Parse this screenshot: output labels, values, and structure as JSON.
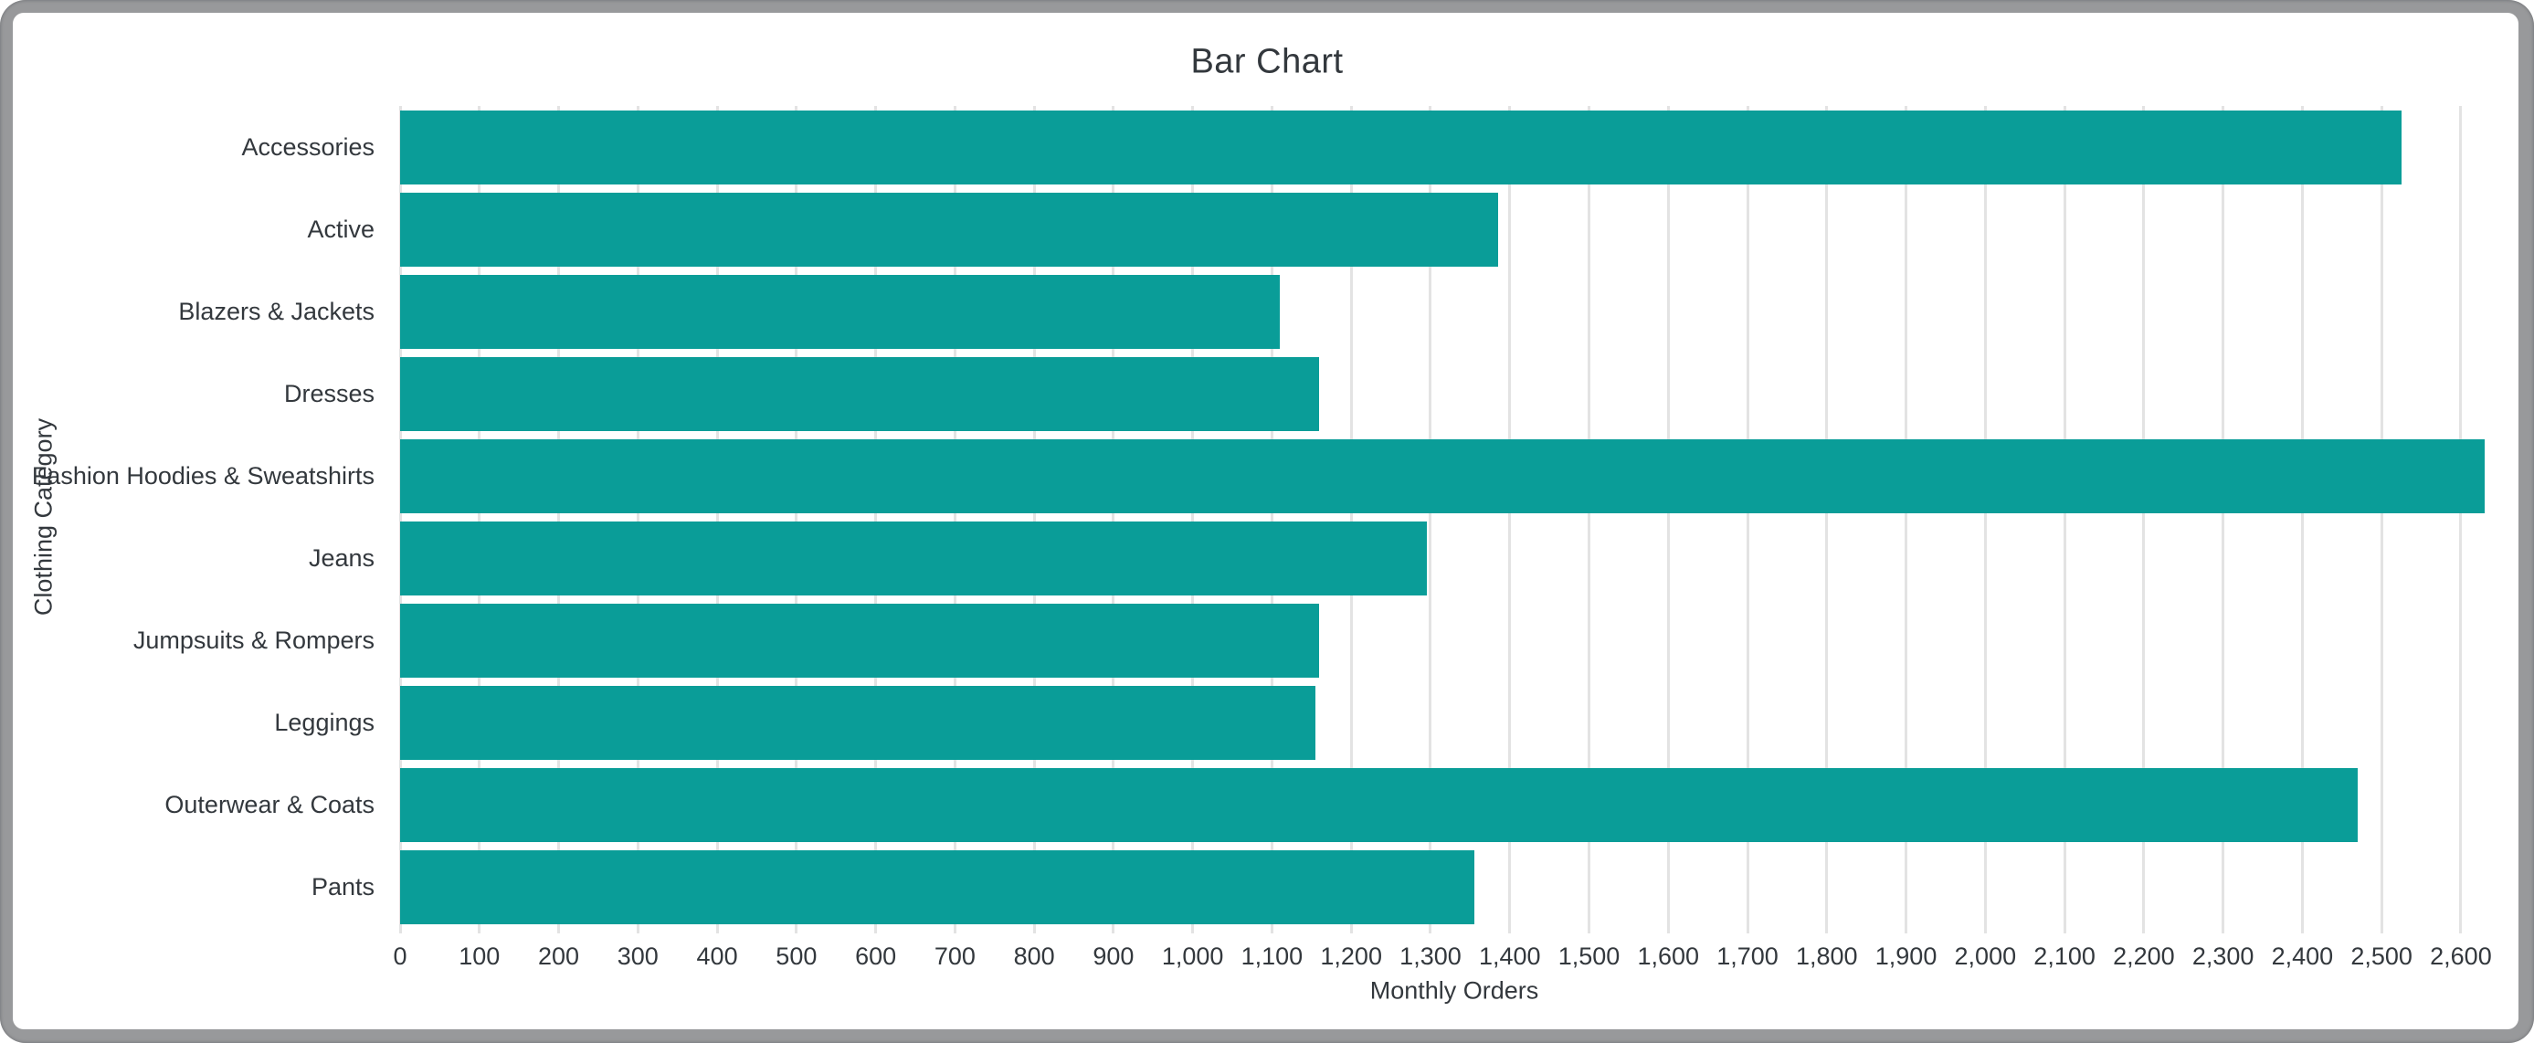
{
  "chart_data": {
    "type": "bar",
    "orientation": "horizontal",
    "title": "Bar Chart",
    "xlabel": "Monthly Orders",
    "ylabel": "Clothing Category",
    "categories": [
      "Accessories",
      "Active",
      "Blazers & Jackets",
      "Dresses",
      "Fashion Hoodies & Sweatshirts",
      "Jeans",
      "Jumpsuits & Rompers",
      "Leggings",
      "Outerwear & Coats",
      "Pants"
    ],
    "values": [
      2525,
      1385,
      1110,
      1160,
      2630,
      1295,
      1160,
      1155,
      2470,
      1355
    ],
    "xlim": [
      0,
      2660
    ],
    "xticks": [
      0,
      100,
      200,
      300,
      400,
      500,
      600,
      700,
      800,
      900,
      1000,
      1100,
      1200,
      1300,
      1400,
      1500,
      1600,
      1700,
      1800,
      1900,
      2000,
      2100,
      2200,
      2300,
      2400,
      2500,
      2600
    ],
    "xtick_labels": [
      "0",
      "100",
      "200",
      "300",
      "400",
      "500",
      "600",
      "700",
      "800",
      "900",
      "1,000",
      "1,100",
      "1,200",
      "1,300",
      "1,400",
      "1,500",
      "1,600",
      "1,700",
      "1,800",
      "1,900",
      "2,000",
      "2,100",
      "2,200",
      "2,300",
      "2,400",
      "2,500",
      "2,600"
    ],
    "grid": true,
    "legend": false,
    "colors": {
      "bar": "#0a9d98",
      "gridline": "#e3e3e3",
      "text": "#33383d",
      "frame": "#98999b",
      "background": "#ffffff"
    }
  }
}
